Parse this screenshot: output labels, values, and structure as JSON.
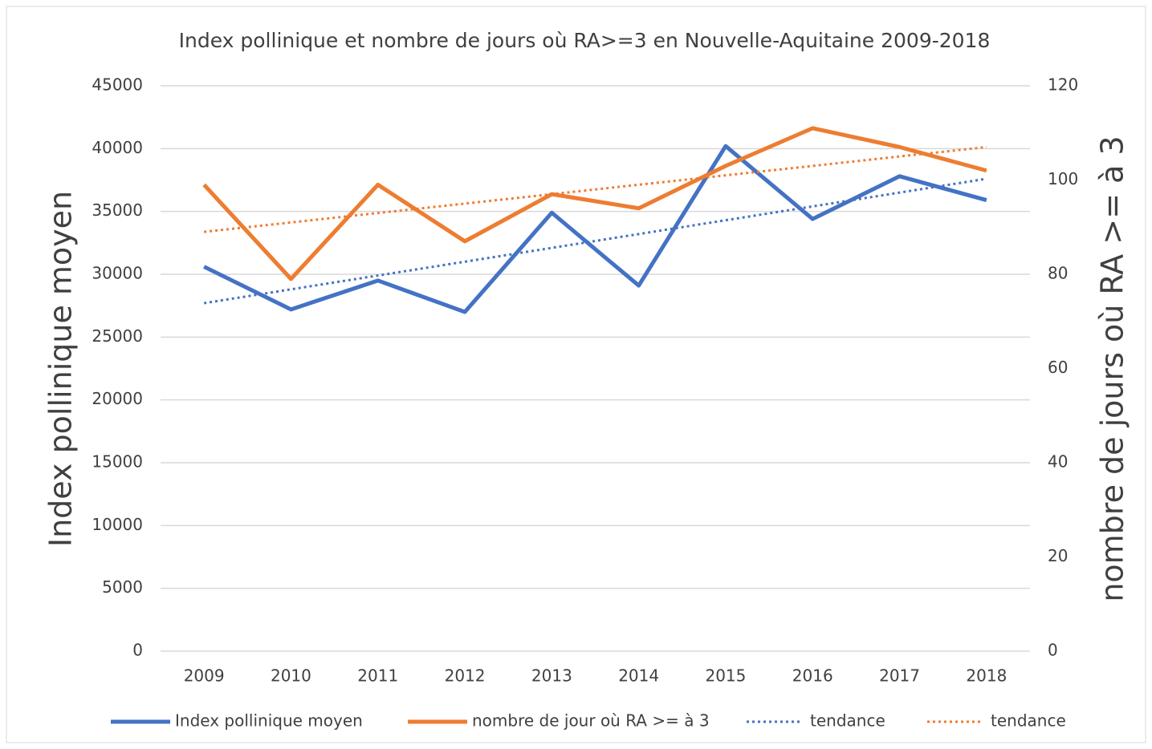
{
  "chart_data": {
    "type": "line",
    "title": "Index pollinique et nombre de jours où RA>=3 en Nouvelle-Aquitaine 2009-2018",
    "y_label": "Index pollinique moyen",
    "y2_label": "nombre de jours où RA >= à 3",
    "categories": [
      "2009",
      "2010",
      "2011",
      "2012",
      "2013",
      "2014",
      "2015",
      "2016",
      "2017",
      "2018"
    ],
    "series": [
      {
        "name": "Index pollinique moyen",
        "color": "#4472c4",
        "style": "solid",
        "values": [
          30600,
          27200,
          29500,
          27000,
          34900,
          29100,
          40200,
          34400,
          37800,
          35900
        ]
      },
      {
        "name": "nombre de jour où RA >= à 3",
        "color": "#ed7d31",
        "style": "solid",
        "axis": "y2",
        "values": [
          99,
          79,
          99,
          87,
          97,
          94,
          103,
          111,
          107,
          102
        ]
      },
      {
        "name": "tendance",
        "color": "#4472c4",
        "style": "dotted",
        "values": [
          27700,
          28800,
          29900,
          31000,
          32100,
          33200,
          34300,
          35400,
          36500,
          37600
        ]
      },
      {
        "name": "tendance",
        "color": "#ed7d31",
        "style": "dotted",
        "axis": "y2",
        "values": [
          89,
          91,
          93,
          95,
          97,
          99,
          101,
          103,
          105,
          107
        ]
      }
    ],
    "ylim": [
      0,
      45000
    ],
    "yticks": [
      0,
      5000,
      10000,
      15000,
      20000,
      25000,
      30000,
      35000,
      40000,
      45000
    ],
    "y2lim": [
      0,
      120
    ],
    "y2ticks": [
      0,
      20,
      40,
      60,
      80,
      100,
      120
    ],
    "grid": true,
    "legend": "bottom"
  }
}
